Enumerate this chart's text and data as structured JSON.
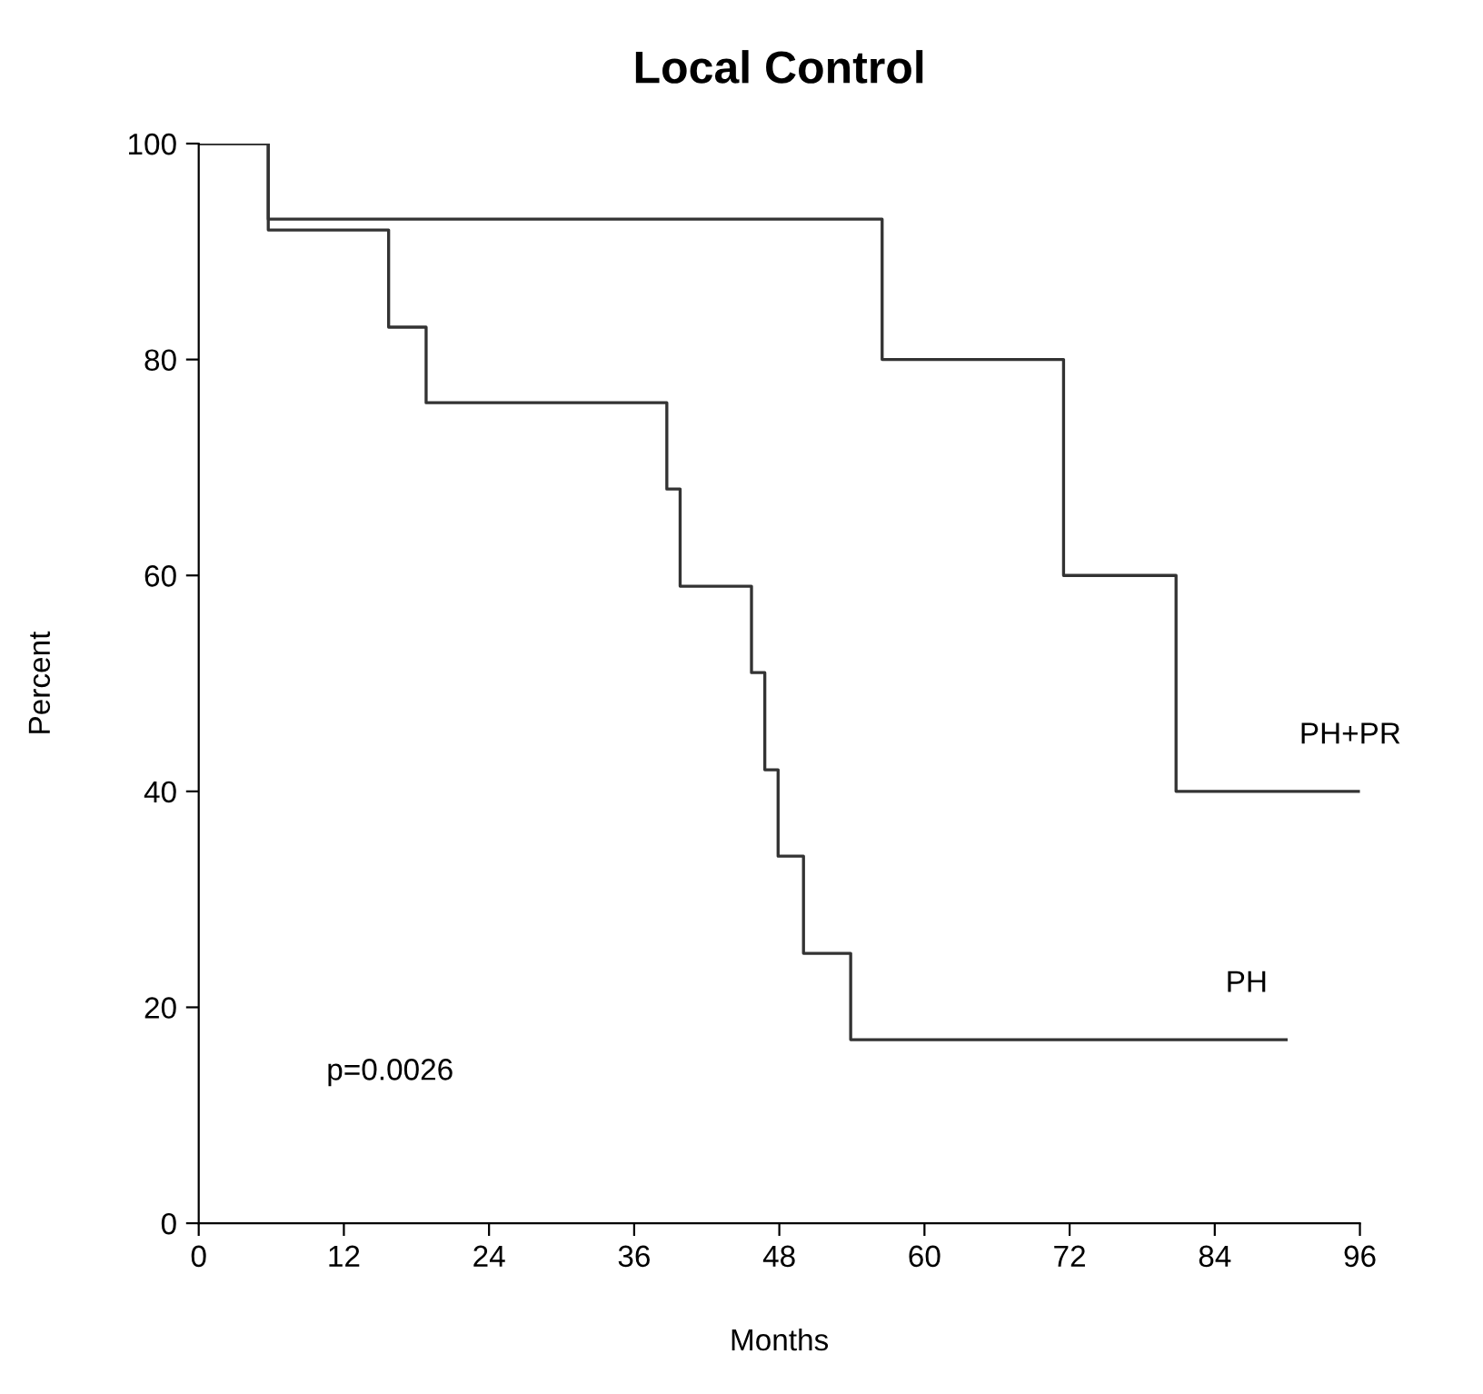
{
  "chart_data": {
    "type": "step",
    "title": "Local Control",
    "xlabel": "Months",
    "ylabel": "Percent",
    "series": [
      {
        "name": "PH+PR",
        "color": "#333333",
        "x": [
          0,
          5.75,
          56.5,
          71.5,
          80.8,
          96
        ],
        "values": [
          100,
          93,
          80,
          60,
          40,
          40
        ]
      },
      {
        "name": "PH",
        "color": "#333333",
        "x": [
          0,
          5.75,
          15.7,
          18.8,
          38.7,
          39.8,
          45.7,
          46.8,
          47.9,
          50.0,
          53.9,
          89.9
        ],
        "values": [
          100,
          92,
          83,
          76,
          68,
          59,
          51,
          42,
          34,
          25,
          17,
          17
        ]
      }
    ],
    "annotations": [
      "p=0.0026"
    ],
    "xlim": [
      0,
      96
    ],
    "xticks": [
      0,
      12,
      24,
      36,
      48,
      60,
      72,
      84,
      96
    ],
    "ylim": [
      0,
      100
    ],
    "yticks": [
      0,
      20,
      40,
      60,
      80,
      100
    ],
    "grid": false,
    "legend": false,
    "marker": "none",
    "line_style": "solid"
  }
}
